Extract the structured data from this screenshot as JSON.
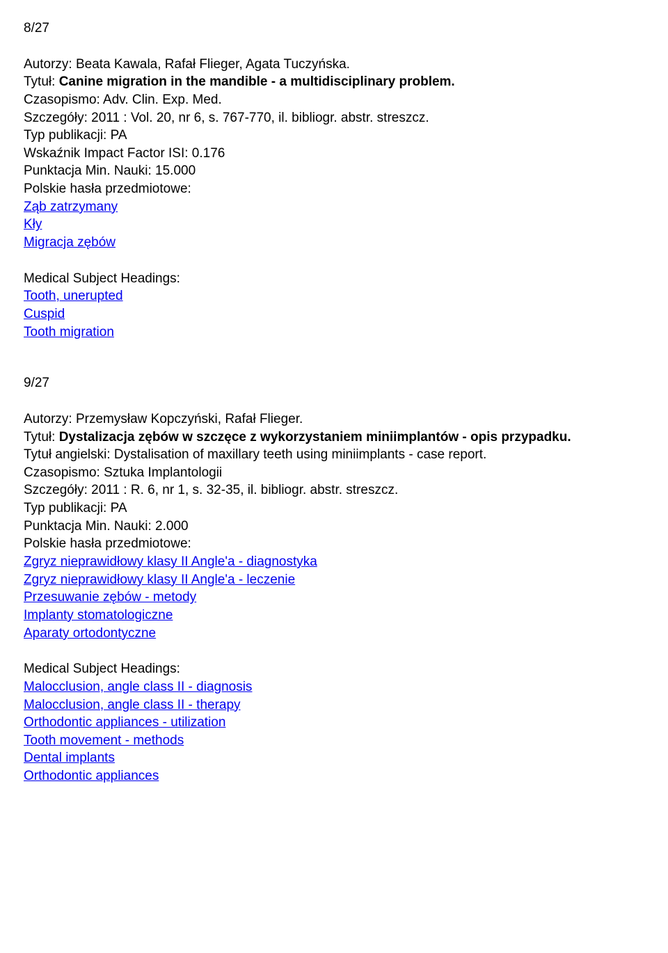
{
  "entries": [
    {
      "number": "8/27",
      "authors_label": "Autorzy: ",
      "authors": "Beata Kawala, Rafał Flieger, Agata Tuczyńska.",
      "title_label": "Tytuł: ",
      "title_bold": "Canine migration in the mandible - a multidisciplinary problem.",
      "title_en_label": "",
      "title_en": "",
      "journal_label": "Czasopismo: ",
      "journal": "Adv. Clin. Exp. Med.",
      "details_label": "Szczegóły: ",
      "details": "2011 : Vol. 20, nr 6, s. 767-770, il. bibliogr. abstr. streszcz.",
      "pubtype_label": "Typ publikacji: ",
      "pubtype": "PA",
      "impact_label": "Wskaźnik Impact Factor ISI: ",
      "impact": "0.176",
      "score_label": "Punktacja Min. Nauki: ",
      "score": "15.000",
      "pl_headings_label": "Polskie hasła przedmiotowe:",
      "pl_headings": [
        "Ząb zatrzymany",
        "Kły",
        "Migracja zębów"
      ],
      "mesh_label": "Medical Subject Headings:",
      "mesh": [
        "Tooth, unerupted",
        "Cuspid",
        "Tooth migration"
      ]
    },
    {
      "number": "9/27",
      "authors_label": "Autorzy: ",
      "authors": "Przemysław Kopczyński, Rafał Flieger.",
      "title_label": "Tytuł: ",
      "title_bold": "Dystalizacja zębów w szczęce z wykorzystaniem miniimplantów - opis przypadku.",
      "title_en_label": "Tytuł angielski: ",
      "title_en": "Dystalisation of maxillary teeth using miniimplants - case report.",
      "journal_label": "Czasopismo: ",
      "journal": "Sztuka Implantologii",
      "details_label": "Szczegóły: ",
      "details": "2011 : R. 6, nr 1, s. 32-35, il. bibliogr. abstr. streszcz.",
      "pubtype_label": "Typ publikacji: ",
      "pubtype": "PA",
      "impact_label": "",
      "impact": "",
      "score_label": "Punktacja Min. Nauki: ",
      "score": "2.000",
      "pl_headings_label": "Polskie hasła przedmiotowe:",
      "pl_headings": [
        "Zgryz nieprawidłowy klasy II Angle'a - diagnostyka",
        "Zgryz nieprawidłowy klasy II Angle'a - leczenie",
        "Przesuwanie zębów - metody",
        "Implanty stomatologiczne",
        "Aparaty ortodontyczne"
      ],
      "mesh_label": "Medical Subject Headings:",
      "mesh": [
        "Malocclusion, angle class II - diagnosis",
        "Malocclusion, angle class II - therapy",
        "Orthodontic appliances - utilization",
        "Tooth movement - methods",
        "Dental implants",
        "Orthodontic appliances"
      ]
    }
  ]
}
